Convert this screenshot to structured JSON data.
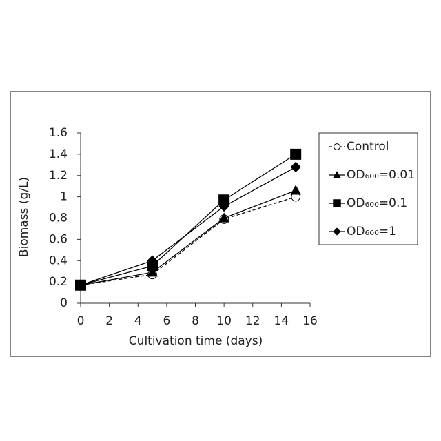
{
  "chart_data": {
    "type": "line",
    "x_label": "Cultivation time (days)",
    "y_label": "Biomass (g/L)",
    "x": [
      0,
      5,
      10,
      15
    ],
    "series": [
      {
        "name": "Control",
        "color": "#000000",
        "marker": "circle",
        "dashed": true,
        "values": [
          0.17,
          0.27,
          0.79,
          1.0
        ]
      },
      {
        "name": "OD₆₀₀=0.01",
        "color": "#000000",
        "marker": "triangle",
        "dashed": false,
        "values": [
          0.17,
          0.29,
          0.8,
          1.06
        ]
      },
      {
        "name": "OD₆₀₀=0.1",
        "color": "#000000",
        "marker": "square",
        "dashed": false,
        "values": [
          0.17,
          0.35,
          0.97,
          1.4
        ]
      },
      {
        "name": "OD₆₀₀=1",
        "color": "#000000",
        "marker": "diamond",
        "dashed": false,
        "values": [
          0.17,
          0.4,
          0.91,
          1.28
        ]
      }
    ],
    "xlim": [
      0,
      16
    ],
    "xticks": [
      0,
      2,
      4,
      6,
      8,
      10,
      12,
      14,
      16
    ],
    "ylim": [
      0,
      1.6
    ],
    "yticks": [
      0,
      0.2,
      0.4,
      0.6,
      0.8,
      1,
      1.2,
      1.4,
      1.6
    ],
    "grid": false,
    "legend": "right"
  }
}
